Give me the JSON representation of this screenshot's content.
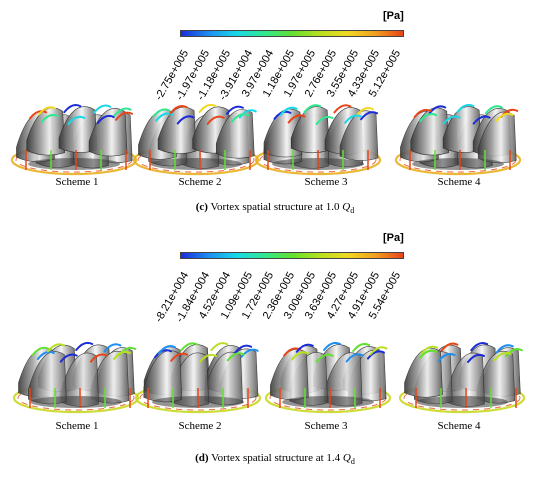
{
  "panel_c": {
    "colorbar": {
      "unit": "[Pa]",
      "ticks": [
        "-2.75e+005",
        "-1.97e+005",
        "-1.18e+005",
        "-3.91e+004",
        "3.97e+004",
        "1.18e+005",
        "1.97e+005",
        "2.76e+005",
        "3.55e+005",
        "4.33e+005",
        "5.12e+005"
      ]
    },
    "schemes": [
      "Scheme 1",
      "Scheme 2",
      "Scheme 3",
      "Scheme 4"
    ],
    "caption": {
      "letter": "(c)",
      "text": " Vortex spatial structure at 1.0 ",
      "q": "Q",
      "sub": "d"
    }
  },
  "panel_d": {
    "colorbar": {
      "unit": "[Pa]",
      "ticks": [
        "-8.21e+004",
        "-1.84e+004",
        "4.52e+004",
        "1.09e+005",
        "1.72e+005",
        "2.36e+005",
        "3.00e+005",
        "3.63e+005",
        "4.27e+005",
        "4.91e+005",
        "5.54e+005"
      ]
    },
    "schemes": [
      "Scheme 1",
      "Scheme 2",
      "Scheme 3",
      "Scheme 4"
    ],
    "caption": {
      "letter": "(d)",
      "text": " Vortex spatial structure at 1.4 ",
      "q": "Q",
      "sub": "d"
    }
  },
  "colors": {
    "colormap": [
      "#1a2cd8",
      "#1e8ff0",
      "#18d8e8",
      "#30e890",
      "#62e030",
      "#b8e020",
      "#f0d820",
      "#f0a020",
      "#e84418"
    ],
    "blade_light": "#f2f2f2",
    "blade_dark": "#4a4a4a"
  }
}
